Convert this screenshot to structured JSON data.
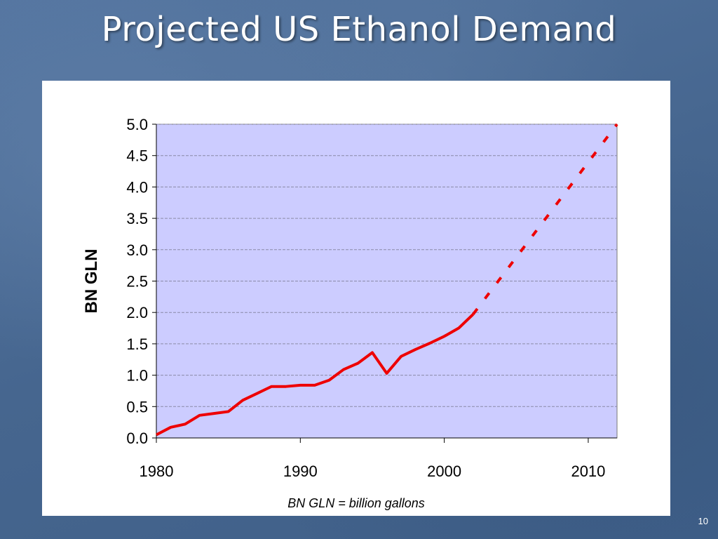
{
  "slide": {
    "title": "Projected US Ethanol Demand",
    "footnote": "BN GLN = billion gallons",
    "page_number": "10"
  },
  "colors": {
    "plot_bg": "#ccccff",
    "line": "#ee0000",
    "grid": "#8a8aa8"
  },
  "chart_data": {
    "type": "line",
    "ylabel": "BN GLN",
    "xlabel": "",
    "xlim": [
      1980,
      2012
    ],
    "ylim": [
      0,
      5
    ],
    "y_ticks": [
      "0.0",
      "0.5",
      "1.0",
      "1.5",
      "2.0",
      "2.5",
      "3.0",
      "3.5",
      "4.0",
      "4.5",
      "5.0"
    ],
    "x_ticks": [
      "1980",
      "1990",
      "2000",
      "2010"
    ],
    "grid": "horizontal dashed",
    "series": [
      {
        "style": "solid",
        "x": [
          1980,
          1981,
          1982,
          1983,
          1984,
          1985,
          1986,
          1987,
          1988,
          1989,
          1990,
          1991,
          1992,
          1993,
          1994,
          1995,
          1996,
          1997,
          1998,
          1999,
          2000,
          2001,
          2002
        ],
        "y": [
          0.05,
          0.17,
          0.22,
          0.36,
          0.39,
          0.42,
          0.6,
          0.71,
          0.82,
          0.82,
          0.84,
          0.84,
          0.92,
          1.09,
          1.19,
          1.36,
          1.03,
          1.3,
          1.41,
          1.51,
          1.62,
          1.75,
          1.97
        ]
      },
      {
        "style": "dashed",
        "x": [
          2002,
          2012
        ],
        "y": [
          1.97,
          5.0
        ]
      }
    ]
  }
}
